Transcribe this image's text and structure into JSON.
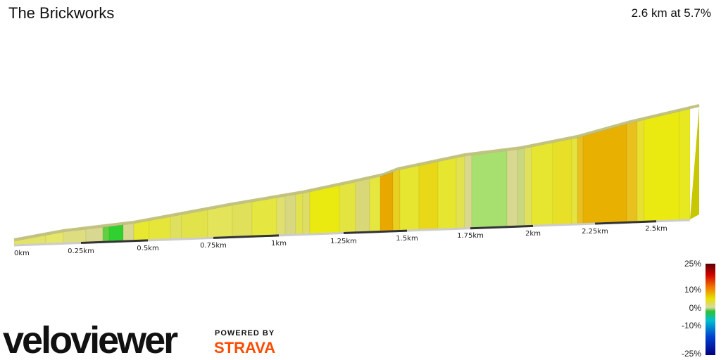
{
  "header": {
    "title": "The Brickworks",
    "summary": "2.6 km at 5.7%"
  },
  "distance_labels": [
    "0km",
    "0.25km",
    "0.5km",
    "0.75km",
    "1km",
    "1.25km",
    "1.5km",
    "1.75km",
    "2km",
    "2.25km",
    "2.5km"
  ],
  "legend": {
    "labels": [
      "25%",
      "10%",
      "0%",
      "-10%",
      "-25%"
    ]
  },
  "branding": {
    "logo": "veloviewer",
    "powered_by": "POWERED BY",
    "strava": "STRAVA"
  }
}
